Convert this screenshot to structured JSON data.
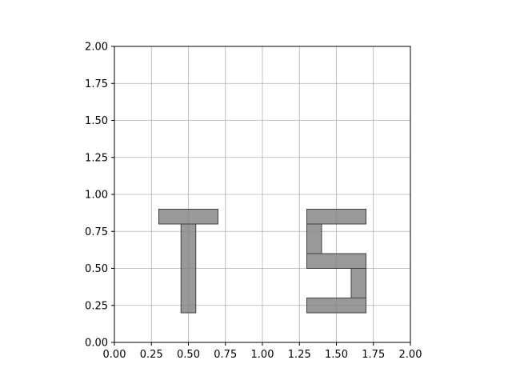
{
  "chart_data": {
    "type": "rectangles",
    "title": "",
    "xlabel": "",
    "ylabel": "",
    "xlim": [
      0,
      2
    ],
    "ylim": [
      0,
      2
    ],
    "grid": true,
    "aspect": "equal",
    "x_ticks": [
      0.0,
      0.25,
      0.5,
      0.75,
      1.0,
      1.25,
      1.5,
      1.75,
      2.0
    ],
    "y_ticks": [
      0.0,
      0.25,
      0.5,
      0.75,
      1.0,
      1.25,
      1.5,
      1.75,
      2.0
    ],
    "x_tick_labels": [
      "0.00",
      "0.25",
      "0.50",
      "0.75",
      "1.00",
      "1.25",
      "1.50",
      "1.75",
      "2.00"
    ],
    "y_tick_labels": [
      "0.00",
      "0.25",
      "0.50",
      "0.75",
      "1.00",
      "1.25",
      "1.50",
      "1.75",
      "2.00"
    ],
    "rect_fill": "#7f7f7f",
    "rect_fill_opacity": 0.8,
    "rect_edge": "#404040",
    "grid_color": "#b0b0b0",
    "rectangles": [
      {
        "x0": 0.3,
        "y0": 0.8,
        "x1": 0.7,
        "y1": 0.9
      },
      {
        "x0": 0.45,
        "y0": 0.2,
        "x1": 0.55,
        "y1": 0.8
      },
      {
        "x0": 1.3,
        "y0": 0.8,
        "x1": 1.7,
        "y1": 0.9
      },
      {
        "x0": 1.3,
        "y0": 0.6,
        "x1": 1.4,
        "y1": 0.8
      },
      {
        "x0": 1.3,
        "y0": 0.5,
        "x1": 1.7,
        "y1": 0.6
      },
      {
        "x0": 1.6,
        "y0": 0.3,
        "x1": 1.7,
        "y1": 0.5
      },
      {
        "x0": 1.3,
        "y0": 0.2,
        "x1": 1.7,
        "y1": 0.3
      }
    ]
  }
}
